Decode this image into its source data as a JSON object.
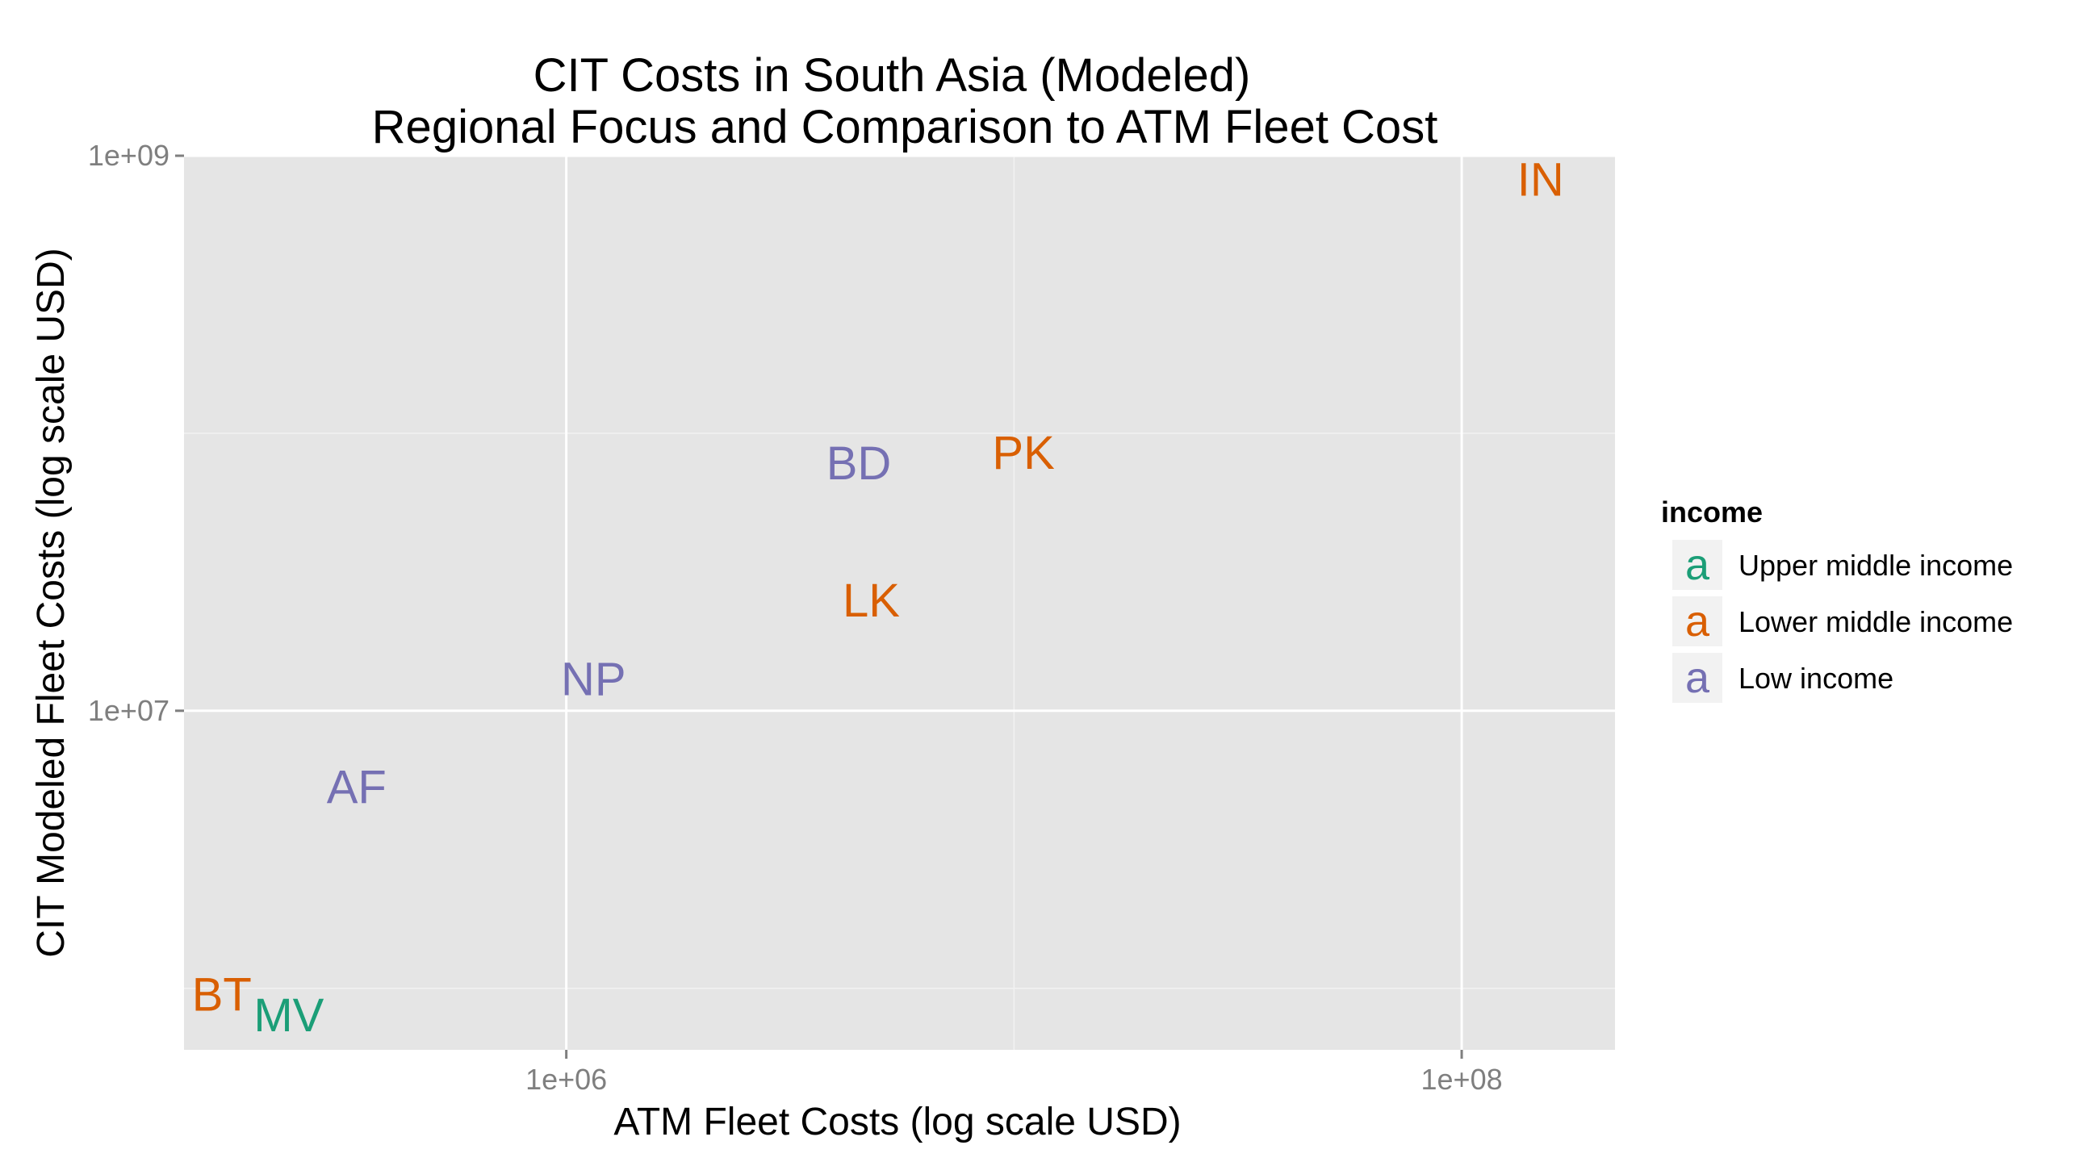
{
  "chart_data": {
    "type": "scatter",
    "title": "CIT Costs in South Asia (Modeled)",
    "subtitle": "Regional Focus and Comparison to ATM Fleet Cost",
    "xlabel": "ATM Fleet Costs (log scale USD)",
    "ylabel": "CIT Modeled Fleet Costs (log scale USD)",
    "x_scale": "log10",
    "y_scale": "log10",
    "xlim": [
      140000,
      220000000
    ],
    "ylim": [
      600000,
      1000000000
    ],
    "x_ticks": [
      {
        "value": 1000000,
        "label": "1e+06"
      },
      {
        "value": 100000000,
        "label": "1e+08"
      }
    ],
    "y_ticks": [
      {
        "value": 10000000,
        "label": "1e+07"
      },
      {
        "value": 1000000000,
        "label": "1e+09"
      }
    ],
    "grid": true,
    "legend": {
      "title": "income",
      "position": "right",
      "key_glyph": "a",
      "entries": [
        {
          "label": "Upper middle income",
          "color": "#1b9e77"
        },
        {
          "label": "Lower middle income",
          "color": "#d95f02"
        },
        {
          "label": "Low income",
          "color": "#7570b3"
        }
      ]
    },
    "points": [
      {
        "label": "IN",
        "x": 150000000,
        "y": 820000000,
        "group": "Lower middle income"
      },
      {
        "label": "PK",
        "x": 10500000,
        "y": 85000000,
        "group": "Lower middle income"
      },
      {
        "label": "BD",
        "x": 4500000,
        "y": 78000000,
        "group": "Low income"
      },
      {
        "label": "LK",
        "x": 4800000,
        "y": 25000000,
        "group": "Lower middle income"
      },
      {
        "label": "NP",
        "x": 1150000,
        "y": 13000000,
        "group": "Low income"
      },
      {
        "label": "AF",
        "x": 340000,
        "y": 5300000,
        "group": "Low income"
      },
      {
        "label": "BT",
        "x": 170000,
        "y": 950000,
        "group": "Lower middle income"
      },
      {
        "label": "MV",
        "x": 240000,
        "y": 800000,
        "group": "Upper middle income"
      }
    ]
  }
}
